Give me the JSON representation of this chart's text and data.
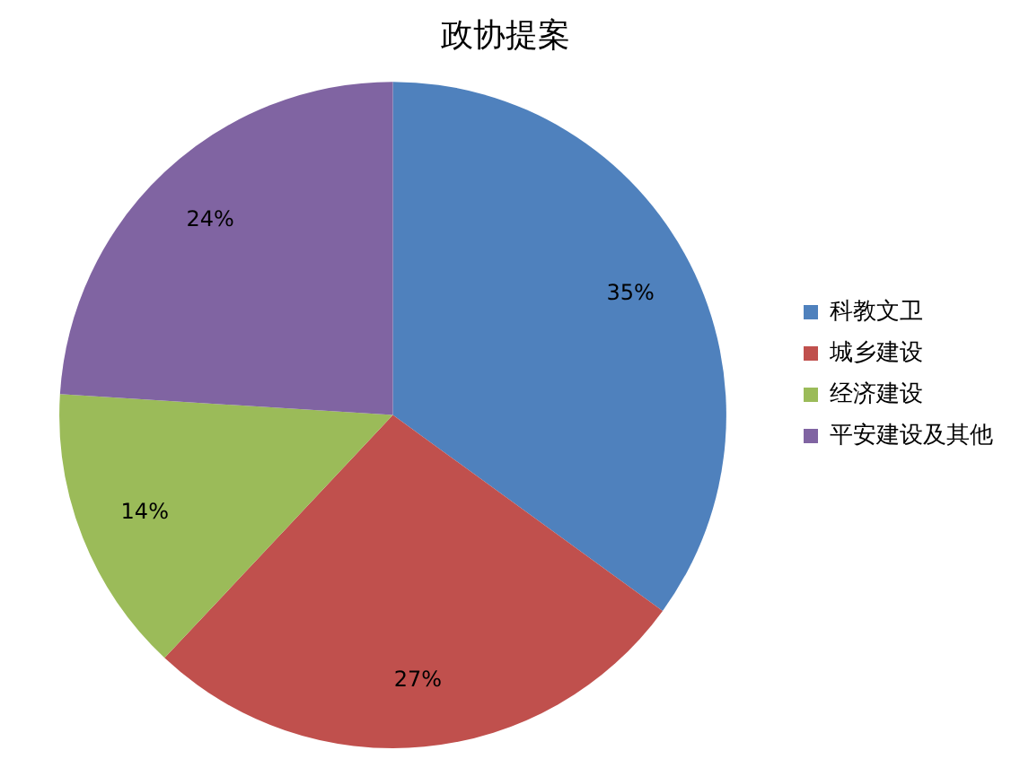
{
  "chart_data": {
    "type": "pie",
    "title": "政协提案",
    "categories": [
      "科教文卫",
      "城乡建设",
      "经济建设",
      "平安建设及其他"
    ],
    "values": [
      35,
      27,
      14,
      24
    ],
    "value_labels": [
      "35%",
      "27%",
      "14%",
      "24%"
    ],
    "colors": [
      "#4f81bd",
      "#c0504d",
      "#9bbb59",
      "#8064a2"
    ],
    "legend": "right"
  }
}
